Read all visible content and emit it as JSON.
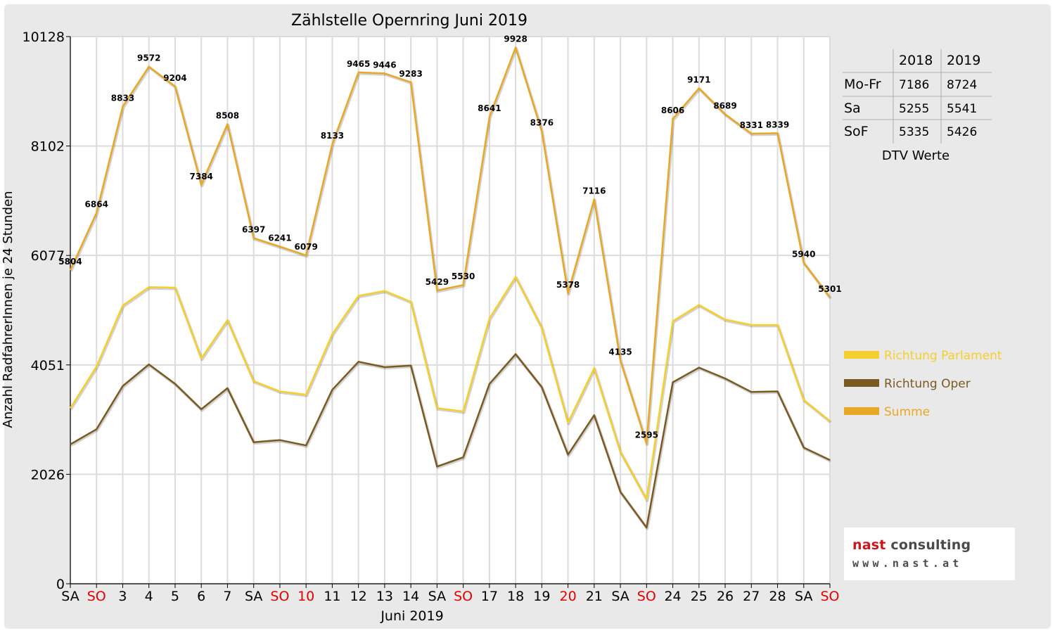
{
  "chart_data": {
    "type": "line",
    "title": "Zählstelle Opernring Juni 2019",
    "ylabel": "Anzahl RadfahrerInnen je 24 Stunden",
    "xlabel": "Juni 2019",
    "ylim": [
      0,
      10128
    ],
    "yticks": [
      "0",
      "2026",
      "4051",
      "6077",
      "8102",
      "10128"
    ],
    "categories": [
      "SA",
      "SO",
      "3",
      "4",
      "5",
      "6",
      "7",
      "SA",
      "SO",
      "10",
      "11",
      "12",
      "13",
      "14",
      "SA",
      "SO",
      "17",
      "18",
      "19",
      "20",
      "21",
      "SA",
      "SO",
      "24",
      "25",
      "26",
      "27",
      "28",
      "SA",
      "SO"
    ],
    "red_categories": [
      1,
      8,
      9,
      15,
      19,
      22,
      29
    ],
    "series": [
      {
        "name": "Richtung Parlament",
        "color": "#f5cf2c",
        "values": [
          3250,
          4020,
          5150,
          5490,
          5480,
          4170,
          4880,
          3750,
          3560,
          3500,
          4620,
          5330,
          5420,
          5220,
          3250,
          3190,
          4910,
          5680,
          4740,
          2980,
          3990,
          2440,
          1560,
          4860,
          5160,
          4890,
          4790,
          4790,
          3400,
          3010
        ]
      },
      {
        "name": "Richtung Oper",
        "color": "#7a5a22",
        "values": [
          2580,
          2860,
          3660,
          4060,
          3700,
          3230,
          3620,
          2620,
          2660,
          2560,
          3590,
          4110,
          4010,
          4040,
          2170,
          2340,
          3700,
          4250,
          3640,
          2390,
          3120,
          1700,
          1040,
          3730,
          4000,
          3800,
          3550,
          3560,
          2520,
          2290
        ]
      },
      {
        "name": "Summe",
        "color": "#e8a825",
        "values": [
          5804,
          6864,
          8833,
          9572,
          9204,
          7384,
          8508,
          6397,
          6241,
          6079,
          8133,
          9465,
          9446,
          9283,
          5429,
          5530,
          8641,
          9928,
          8376,
          5378,
          7116,
          4135,
          2595,
          8606,
          9171,
          8689,
          8331,
          8339,
          5940,
          5301
        ]
      }
    ],
    "data_labels": [
      "5804",
      "6864",
      "8833",
      "9572",
      "9204",
      "7384",
      "8508",
      "6397",
      "6241",
      "6079",
      "8133",
      "9465",
      "9446",
      "9283",
      "5429",
      "5530",
      "8641",
      "9928",
      "8376",
      "5378",
      "7116",
      "4135",
      "2595",
      "8606",
      "9171",
      "8689",
      "8331",
      "8339",
      "5940",
      "5301"
    ],
    "grid": true,
    "legend_position": "right",
    "dtv_table": {
      "headers": [
        "",
        "2018",
        "2019"
      ],
      "rows": [
        [
          "Mo-Fr",
          "7186",
          "8724"
        ],
        [
          "Sa",
          "5255",
          "5541"
        ],
        [
          "SoF",
          "5335",
          "5426"
        ]
      ],
      "caption": "DTV Werte"
    }
  },
  "logo": {
    "name_part1": "nast",
    "name_part2": " consulting",
    "url": "www.nast.at"
  }
}
